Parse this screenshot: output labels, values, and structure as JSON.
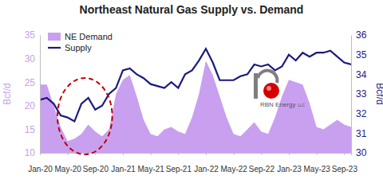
{
  "chart_data": {
    "type": "line",
    "title": "Northeast Natural Gas Supply vs. Demand",
    "ylabel": "Bcf/d",
    "y2label": "Bcf/d",
    "categories": [
      "Jan-20",
      null,
      null,
      null,
      "May-20",
      null,
      null,
      null,
      "Sep-20",
      null,
      null,
      null,
      "Jan-21",
      null,
      null,
      null,
      "May-21",
      null,
      null,
      null,
      "Sep-21",
      null,
      null,
      null,
      "Jan-22",
      null,
      null,
      null,
      "May-22",
      null,
      null,
      null,
      "Sep-22",
      null,
      null,
      null,
      "Jan-23",
      null,
      null,
      null,
      "May-23",
      null,
      null,
      null,
      "Sep-23",
      null
    ],
    "series": [
      {
        "name": "NE Demand",
        "type": "area",
        "color": "#c9a0f0",
        "values": [
          24.5,
          24.5,
          20,
          15.5,
          12.5,
          13,
          14,
          16,
          14.5,
          13.5,
          15,
          22.5,
          25.5,
          26.5,
          22,
          17,
          14,
          13.5,
          15,
          15.5,
          14.5,
          14,
          17.5,
          22.5,
          29.5,
          26.5,
          22,
          17.5,
          14,
          13.5,
          15,
          16.5,
          14.5,
          14,
          17.5,
          22,
          25.5,
          25,
          24.5,
          20.5,
          15.5,
          15,
          16,
          17,
          16,
          15.5
        ]
      },
      {
        "name": "Supply",
        "type": "line",
        "color": "#1a1a7e",
        "axis": "y2",
        "values": [
          32.7,
          32.8,
          32.5,
          31.9,
          31.8,
          31.6,
          32.5,
          32.8,
          32.2,
          32.4,
          33,
          33.3,
          34.2,
          34.3,
          34,
          33.8,
          33.5,
          33.4,
          33.3,
          33.6,
          33.3,
          34,
          34.2,
          34.7,
          35.3,
          34.6,
          33.7,
          33.7,
          33.7,
          33.9,
          34,
          34.5,
          34.4,
          34.5,
          34.2,
          34.4,
          35,
          34.7,
          35.1,
          34.9,
          35.1,
          35.1,
          35.2,
          34.9,
          34.6,
          34.5
        ]
      }
    ],
    "ylim": [
      10,
      35
    ],
    "yticks": [
      10,
      15,
      20,
      25,
      30,
      35
    ],
    "y2lim": [
      30,
      36
    ],
    "y2ticks": [
      30,
      31,
      32,
      33,
      34,
      35,
      36
    ],
    "grid": false,
    "legend": "top-left",
    "annotations": [
      "RBN Energy",
      "LLC"
    ]
  }
}
